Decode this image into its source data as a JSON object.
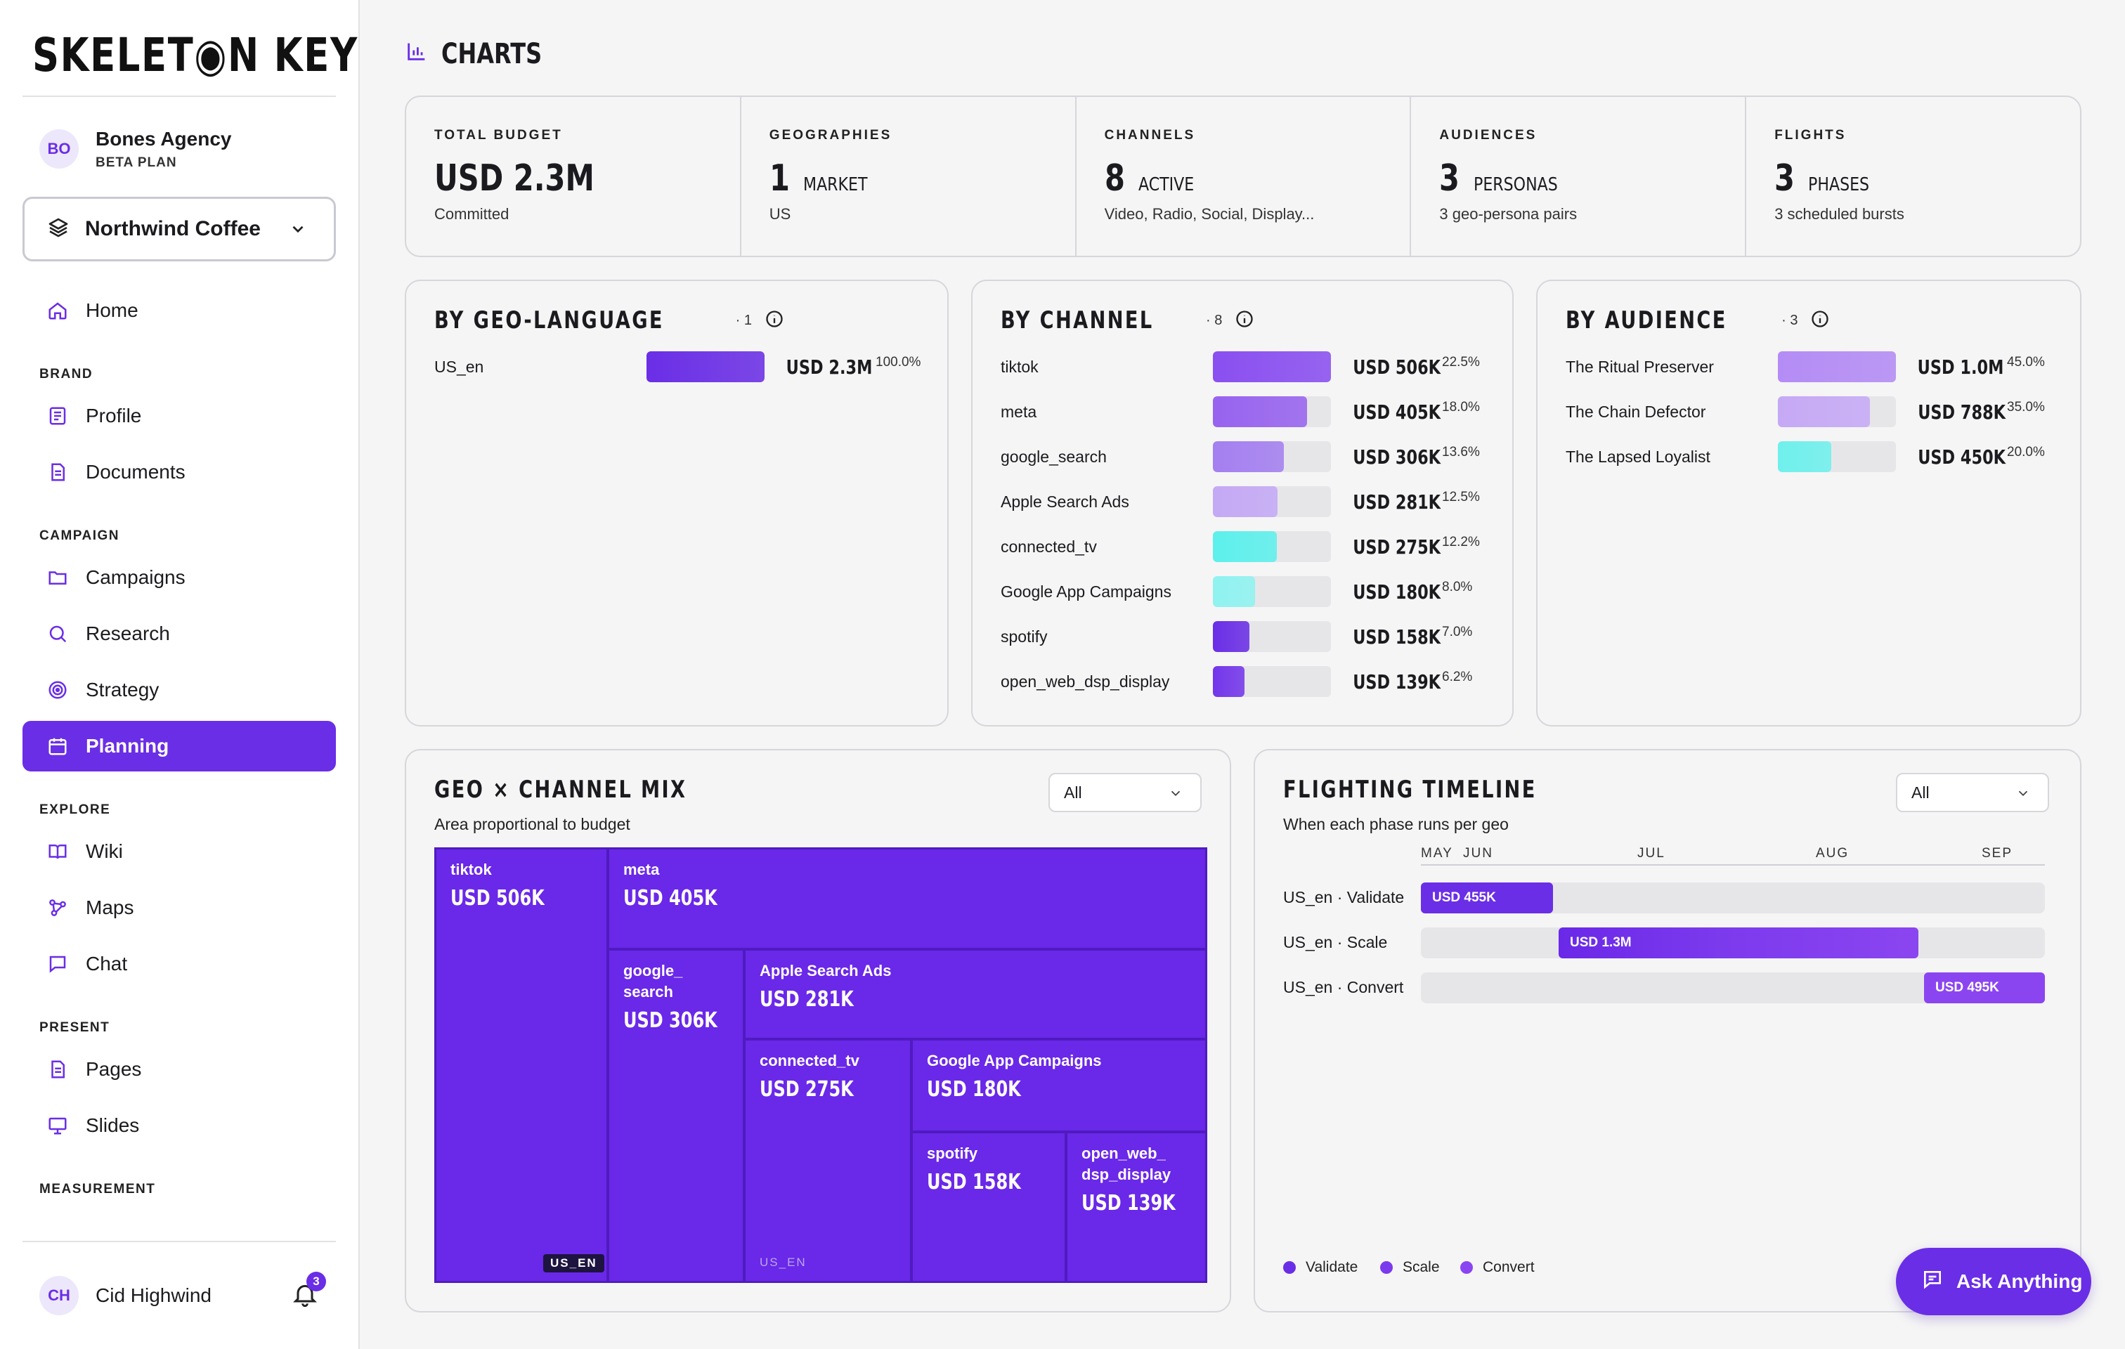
{
  "app": {
    "logo": "SKELET◉N KEY",
    "page_title": "CHARTS"
  },
  "account": {
    "initials": "BO",
    "name": "Bones Agency",
    "plan": "BETA PLAN"
  },
  "project": {
    "name": "Northwind Coffee"
  },
  "nav": {
    "home": "Home",
    "brand_section": "BRAND",
    "profile": "Profile",
    "documents": "Documents",
    "campaign_section": "CAMPAIGN",
    "campaigns": "Campaigns",
    "research": "Research",
    "strategy": "Strategy",
    "planning": "Planning",
    "explore_section": "EXPLORE",
    "wiki": "Wiki",
    "maps": "Maps",
    "chat": "Chat",
    "present_section": "PRESENT",
    "pages": "Pages",
    "slides": "Slides",
    "measurement_section": "MEASUREMENT"
  },
  "user": {
    "initials": "CH",
    "name": "Cid Highwind",
    "notifications": "3"
  },
  "stats": [
    {
      "label": "TOTAL BUDGET",
      "value": "USD 2.3M",
      "unit": "",
      "sub": "Committed"
    },
    {
      "label": "GEOGRAPHIES",
      "value": "1",
      "unit": "MARKET",
      "sub": "US"
    },
    {
      "label": "CHANNELS",
      "value": "8",
      "unit": "ACTIVE",
      "sub": "Video, Radio, Social, Display..."
    },
    {
      "label": "AUDIENCES",
      "value": "3",
      "unit": "PERSONAS",
      "sub": "3 geo-persona pairs"
    },
    {
      "label": "FLIGHTS",
      "value": "3",
      "unit": "PHASES",
      "sub": "3 scheduled bursts"
    }
  ],
  "by_geo": {
    "title": "BY GEO-LANGUAGE",
    "count": "1",
    "rows": [
      {
        "name": "US_en",
        "amount": "USD 2.3M",
        "pct": "100.0%",
        "share": 1.0,
        "color": "#6a2ee6"
      }
    ]
  },
  "by_channel": {
    "title": "BY CHANNEL",
    "count": "8",
    "rows": [
      {
        "name": "tiktok",
        "amount": "USD 506K",
        "pct": "22.5%",
        "share": 1.0,
        "color": "#8a4ff0"
      },
      {
        "name": "meta",
        "amount": "USD 405K",
        "pct": "18.0%",
        "share": 0.8,
        "color": "#9763ef"
      },
      {
        "name": "google_search",
        "amount": "USD 306K",
        "pct": "13.6%",
        "share": 0.6,
        "color": "#a47ff0"
      },
      {
        "name": "Apple Search Ads",
        "amount": "USD 281K",
        "pct": "12.5%",
        "share": 0.55,
        "color": "#c4a9f5"
      },
      {
        "name": "connected_tv",
        "amount": "USD 275K",
        "pct": "12.2%",
        "share": 0.54,
        "color": "#5df0ec"
      },
      {
        "name": "Google App Campaigns",
        "amount": "USD 180K",
        "pct": "8.0%",
        "share": 0.36,
        "color": "#8ff3f0"
      },
      {
        "name": "spotify",
        "amount": "USD 158K",
        "pct": "7.0%",
        "share": 0.31,
        "color": "#6a2ee6"
      },
      {
        "name": "open_web_dsp_display",
        "amount": "USD 139K",
        "pct": "6.2%",
        "share": 0.27,
        "color": "#7336ea"
      }
    ]
  },
  "by_audience": {
    "title": "BY AUDIENCE",
    "count": "3",
    "rows": [
      {
        "name": "The Ritual Preserver",
        "amount": "USD 1.0M",
        "pct": "45.0%",
        "share": 1.0,
        "color": "#b48cf5"
      },
      {
        "name": "The Chain Defector",
        "amount": "USD 788K",
        "pct": "35.0%",
        "share": 0.78,
        "color": "#c6a9f5"
      },
      {
        "name": "The Lapsed Loyalist",
        "amount": "USD 450K",
        "pct": "20.0%",
        "share": 0.45,
        "color": "#6ff0ec"
      }
    ]
  },
  "mix": {
    "title": "GEO × CHANNEL MIX",
    "subtitle": "Area proportional to budget",
    "filter": "All",
    "tiles": [
      {
        "name": "tiktok",
        "value": "USD 506K"
      },
      {
        "name": "meta",
        "value": "USD 405K"
      },
      {
        "name": "google_ search",
        "value": "USD 306K"
      },
      {
        "name": "Apple Search Ads",
        "value": "USD 281K"
      },
      {
        "name": "connected_tv",
        "value": "USD 275K"
      },
      {
        "name": "Google App Campaigns",
        "value": "USD 180K"
      },
      {
        "name": "spotify",
        "value": "USD 158K"
      },
      {
        "name": "open_web_ dsp_display",
        "value": "USD 139K"
      }
    ],
    "geo_label_a": "US_EN",
    "geo_label_b": "US_EN"
  },
  "flighting": {
    "title": "FLIGHTING TIMELINE",
    "subtitle": "When each phase runs per geo",
    "filter": "All",
    "months": [
      "MAY",
      "JUN",
      "JUL",
      "AUG",
      "SEP"
    ],
    "rows": [
      {
        "label": "US_en · Validate",
        "amount": "USD 455K"
      },
      {
        "label": "US_en · Scale",
        "amount": "USD 1.3M"
      },
      {
        "label": "US_en · Convert",
        "amount": "USD 495K"
      }
    ],
    "legend": [
      "Validate",
      "Scale",
      "Convert"
    ],
    "colors": {
      "validate": "#6a2ee6",
      "scale": "#7c3aed",
      "convert": "#8b45f0"
    }
  },
  "ask_button": "Ask Anything"
}
